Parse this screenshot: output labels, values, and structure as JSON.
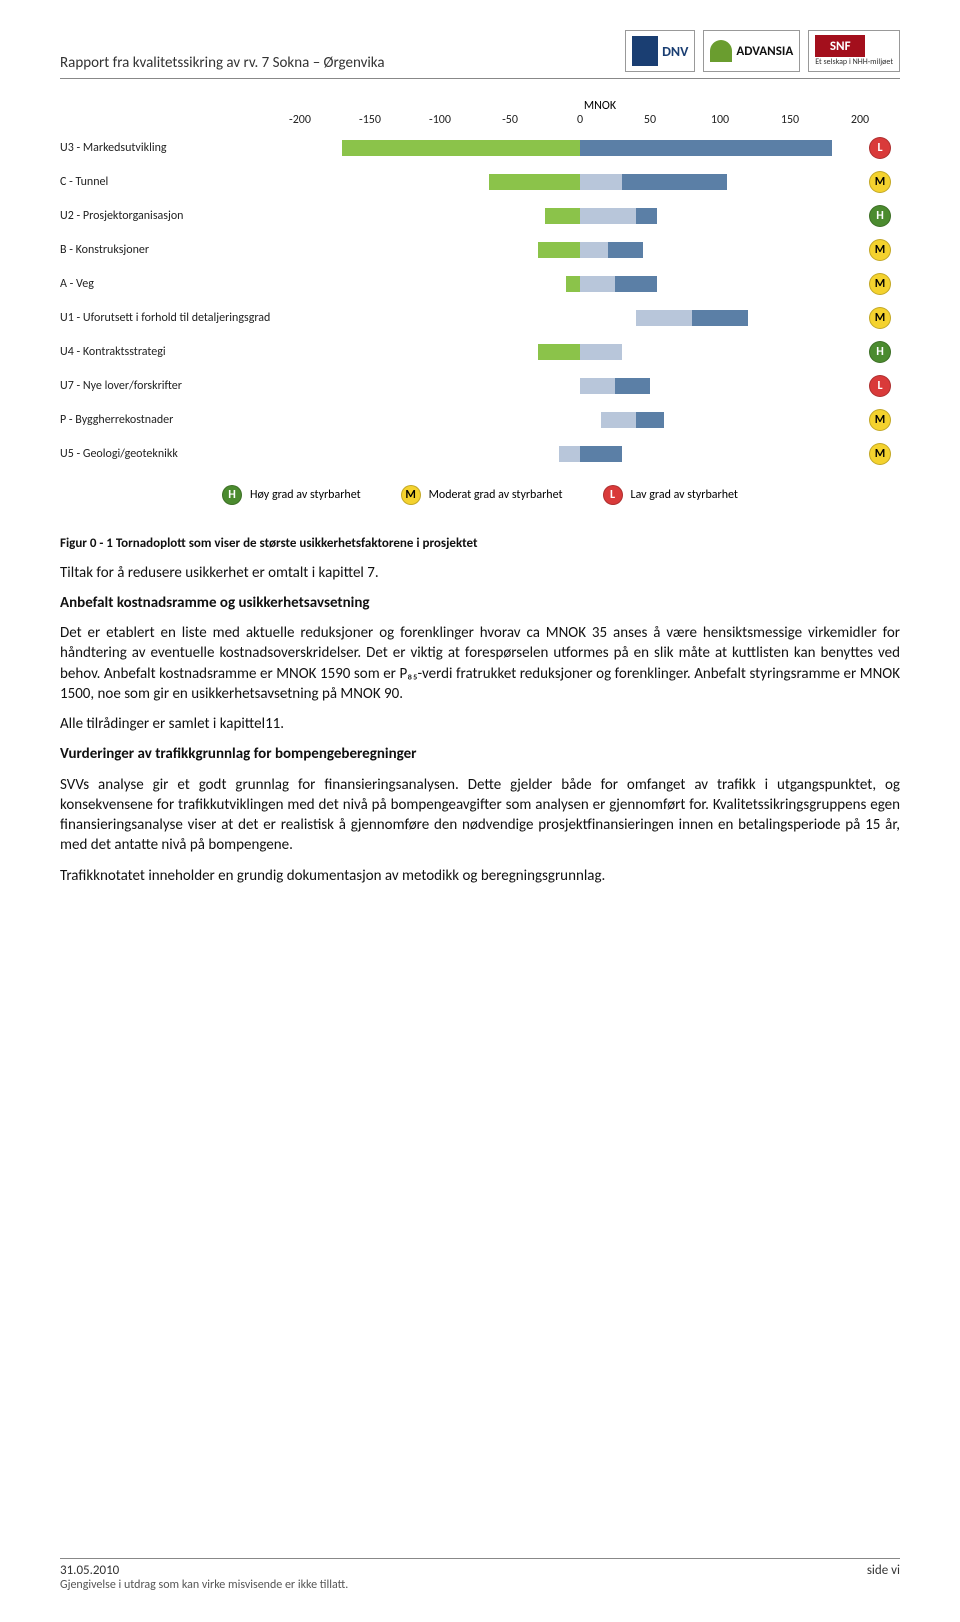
{
  "header": {
    "title": "Rapport fra kvalitetssikring av rv. 7 Sokna – Ørgenvika",
    "logos": {
      "dnv": "DNV",
      "advansia": "ADVANSIA",
      "snf": "SNF",
      "snf_sub": "Et selskap i NHH-miljøet"
    }
  },
  "chart": {
    "axis_title": "MNOK",
    "x_min": -200,
    "x_max": 200,
    "ticks": [
      -200,
      -150,
      -100,
      -50,
      0,
      50,
      100,
      150,
      200
    ],
    "colors": {
      "green": "#8bc34a",
      "blue_dark": "#5b7fa6",
      "blue_light": "#b8c6da",
      "badge_H": "#4b8b2f",
      "badge_M": "#f4d22e",
      "badge_L": "#d93a3a"
    },
    "rows": [
      {
        "label": "U3 - Markedsutvikling",
        "segs": [
          {
            "from": -170,
            "to": 0,
            "c": "green"
          },
          {
            "from": 0,
            "to": 180,
            "c": "blue_dark"
          }
        ],
        "badge": "L"
      },
      {
        "label": "C - Tunnel",
        "segs": [
          {
            "from": -65,
            "to": 0,
            "c": "green"
          },
          {
            "from": 0,
            "to": 30,
            "c": "blue_light"
          },
          {
            "from": 30,
            "to": 105,
            "c": "blue_dark"
          }
        ],
        "badge": "M"
      },
      {
        "label": "U2 - Prosjektorganisasjon",
        "segs": [
          {
            "from": -25,
            "to": 0,
            "c": "green"
          },
          {
            "from": 0,
            "to": 40,
            "c": "blue_light"
          },
          {
            "from": 40,
            "to": 55,
            "c": "blue_dark"
          }
        ],
        "badge": "H"
      },
      {
        "label": "B - Konstruksjoner",
        "segs": [
          {
            "from": -30,
            "to": 0,
            "c": "green"
          },
          {
            "from": 0,
            "to": 20,
            "c": "blue_light"
          },
          {
            "from": 20,
            "to": 45,
            "c": "blue_dark"
          }
        ],
        "badge": "M"
      },
      {
        "label": "A - Veg",
        "segs": [
          {
            "from": -10,
            "to": 0,
            "c": "green"
          },
          {
            "from": 0,
            "to": 25,
            "c": "blue_light"
          },
          {
            "from": 25,
            "to": 55,
            "c": "blue_dark"
          }
        ],
        "badge": "M"
      },
      {
        "label": "U1 - Uforutsett i forhold til detaljeringsgrad",
        "segs": [
          {
            "from": 40,
            "to": 80,
            "c": "blue_light"
          },
          {
            "from": 80,
            "to": 120,
            "c": "blue_dark"
          }
        ],
        "badge": "M"
      },
      {
        "label": "U4 - Kontraktsstrategi",
        "segs": [
          {
            "from": -30,
            "to": 0,
            "c": "green"
          },
          {
            "from": 0,
            "to": 30,
            "c": "blue_light"
          }
        ],
        "badge": "H"
      },
      {
        "label": "U7 - Nye lover/forskrifter",
        "segs": [
          {
            "from": 0,
            "to": 25,
            "c": "blue_light"
          },
          {
            "from": 25,
            "to": 50,
            "c": "blue_dark"
          }
        ],
        "badge": "L"
      },
      {
        "label": "P - Byggherrekostnader",
        "segs": [
          {
            "from": 15,
            "to": 40,
            "c": "blue_light"
          },
          {
            "from": 40,
            "to": 60,
            "c": "blue_dark"
          }
        ],
        "badge": "M"
      },
      {
        "label": "U5 - Geologi/geoteknikk",
        "segs": [
          {
            "from": -15,
            "to": 0,
            "c": "blue_light"
          },
          {
            "from": 0,
            "to": 30,
            "c": "blue_dark"
          }
        ],
        "badge": "M"
      }
    ],
    "legend": [
      {
        "badge": "H",
        "label": "Høy grad av styrbarhet"
      },
      {
        "badge": "M",
        "label": "Moderat grad av styrbarhet"
      },
      {
        "badge": "L",
        "label": "Lav grad av styrbarhet"
      }
    ]
  },
  "text": {
    "caption": "Figur 0 - 1 Tornadoplott som viser de største usikkerhetsfaktorene i prosjektet",
    "p1": "Tiltak for å redusere usikkerhet er omtalt i kapittel 7.",
    "h1": "Anbefalt kostnadsramme og usikkerhetsavsetning",
    "p2": "Det er etablert en liste med aktuelle reduksjoner og forenklinger hvorav ca MNOK 35 anses å være hensiktsmessige virkemidler for håndtering av eventuelle kostnadsoverskridelser. Det er viktig at forespørselen utformes på en slik måte at kuttlisten kan benyttes ved behov. Anbefalt kostnadsramme er MNOK 1590 som er P₈₅-verdi fratrukket reduksjoner og forenklinger. Anbefalt styringsramme er MNOK 1500, noe som gir en usikkerhetsavsetning på MNOK 90.",
    "p3": "Alle tilrådinger er samlet i kapittel11.",
    "h2": "Vurderinger av trafikkgrunnlag for bompengeberegninger",
    "p4": "SVVs analyse gir et godt grunnlag for finansieringsanalysen. Dette gjelder både for omfanget av trafikk i utgangspunktet, og konsekvensene for trafikkutviklingen med det nivå på bompengeavgifter som analysen er gjennomført for. Kvalitetssikringsgruppens egen finansieringsanalyse viser at det er realistisk å gjennomføre den nødvendige prosjektfinansieringen innen en betalingsperiode på 15 år, med det antatte nivå på bompengene.",
    "p5": "Trafikknotatet inneholder en grundig dokumentasjon av metodikk og beregningsgrunnlag."
  },
  "footer": {
    "date": "31.05.2010",
    "note": "Gjengivelse i utdrag som kan virke misvisende er ikke tillatt.",
    "page": "side vi"
  }
}
